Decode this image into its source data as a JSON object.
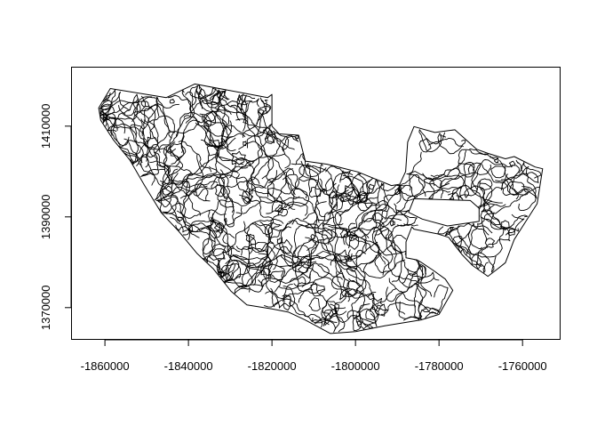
{
  "chart_data": {
    "type": "map",
    "title": "",
    "xlabel": "",
    "ylabel": "",
    "xlim": [
      -1868000,
      -1751000
    ],
    "ylim": [
      1363000,
      1423000
    ],
    "x_ticks": [
      {
        "value": -1860000,
        "label": "-1860000"
      },
      {
        "value": -1840000,
        "label": "-1840000"
      },
      {
        "value": -1820000,
        "label": "-1820000"
      },
      {
        "value": -1800000,
        "label": "-1800000"
      },
      {
        "value": -1780000,
        "label": "-1780000"
      },
      {
        "value": -1760000,
        "label": "-1760000"
      }
    ],
    "y_ticks": [
      {
        "value": 1370000,
        "label": "1370000"
      },
      {
        "value": 1390000,
        "label": "1390000"
      },
      {
        "value": 1410000,
        "label": "1410000"
      }
    ],
    "outline": [
      [
        -1858700,
        1418300
      ],
      [
        -1845300,
        1416300
      ],
      [
        -1843000,
        1417300
      ],
      [
        -1838500,
        1419300
      ],
      [
        -1821000,
        1416300
      ],
      [
        -1820000,
        1417000
      ],
      [
        -1820000,
        1410000
      ],
      [
        -1818300,
        1408300
      ],
      [
        -1813600,
        1408000
      ],
      [
        -1812000,
        1402300
      ],
      [
        -1806800,
        1401600
      ],
      [
        -1799400,
        1399900
      ],
      [
        -1791400,
        1396900
      ],
      [
        -1789400,
        1397200
      ],
      [
        -1788000,
        1400000
      ],
      [
        -1787500,
        1406500
      ],
      [
        -1786000,
        1409900
      ],
      [
        -1781000,
        1408600
      ],
      [
        -1776200,
        1409200
      ],
      [
        -1771000,
        1404900
      ],
      [
        -1768300,
        1404000
      ],
      [
        -1764100,
        1402800
      ],
      [
        -1762000,
        1403300
      ],
      [
        -1757000,
        1401000
      ],
      [
        -1755200,
        1400600
      ],
      [
        -1756500,
        1392900
      ],
      [
        -1762000,
        1385000
      ],
      [
        -1764100,
        1379900
      ],
      [
        -1766000,
        1378500
      ],
      [
        -1768300,
        1376900
      ],
      [
        -1772000,
        1379300
      ],
      [
        -1774500,
        1381700
      ],
      [
        -1776200,
        1383700
      ],
      [
        -1777700,
        1385500
      ],
      [
        -1780500,
        1386300
      ],
      [
        -1786000,
        1387300
      ],
      [
        -1786500,
        1387800
      ],
      [
        -1787900,
        1384500
      ],
      [
        -1787900,
        1381000
      ],
      [
        -1785200,
        1380500
      ],
      [
        -1784300,
        1380000
      ],
      [
        -1781500,
        1378300
      ],
      [
        -1778500,
        1376300
      ],
      [
        -1776700,
        1373800
      ],
      [
        -1780000,
        1368500
      ],
      [
        -1784300,
        1367300
      ],
      [
        -1793000,
        1366000
      ],
      [
        -1800000,
        1364700
      ],
      [
        -1806000,
        1364300
      ],
      [
        -1812100,
        1367300
      ],
      [
        -1816000,
        1369000
      ],
      [
        -1820000,
        1369700
      ],
      [
        -1826000,
        1370600
      ],
      [
        -1829800,
        1373600
      ],
      [
        -1834000,
        1378500
      ],
      [
        -1838000,
        1382000
      ],
      [
        -1842500,
        1387000
      ],
      [
        -1846500,
        1390900
      ],
      [
        -1850500,
        1396900
      ],
      [
        -1854000,
        1402500
      ],
      [
        -1858000,
        1407000
      ],
      [
        -1861000,
        1411300
      ],
      [
        -1861500,
        1414000
      ]
    ],
    "hole": [
      [
        -1786000,
        1394000
      ],
      [
        -1772500,
        1393600
      ],
      [
        -1770400,
        1391900
      ],
      [
        -1770400,
        1389000
      ],
      [
        -1778000,
        1388000
      ],
      [
        -1784000,
        1389500
      ],
      [
        -1787300,
        1391000
      ]
    ]
  }
}
